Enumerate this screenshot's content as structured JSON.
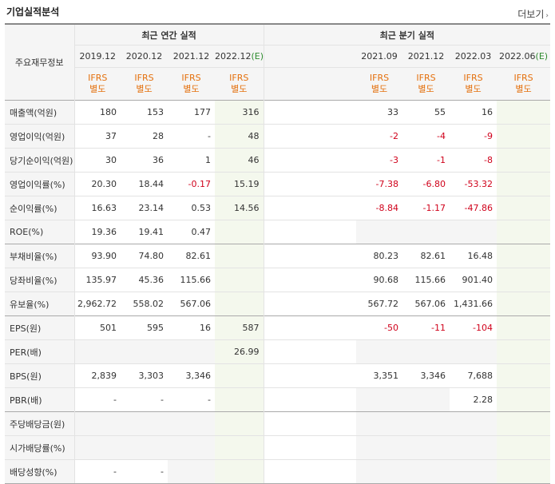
{
  "title": "기업실적분석",
  "more_label": "더보기",
  "header": {
    "row_label": "주요재무정보",
    "annual_group": "최근 연간 실적",
    "quarter_group": "최근 분기 실적",
    "annual_periods": [
      "2019.12",
      "2020.12",
      "2021.12",
      "2022.12"
    ],
    "annual_est_mark": "(E)",
    "quarter_periods": [
      "2021.09",
      "2021.12",
      "2022.03",
      "2022.06"
    ],
    "quarter_est_mark": "(E)",
    "ifrs_line1": "IFRS",
    "ifrs_line2": "별도"
  },
  "rows": [
    {
      "label": "매출액(억원)",
      "annual": [
        "180",
        "153",
        "177",
        "316"
      ],
      "quarter": [
        "33",
        "55",
        "16",
        ""
      ]
    },
    {
      "label": "영업이익(억원)",
      "annual": [
        "37",
        "28",
        "-",
        "48"
      ],
      "quarter": [
        "-2",
        "-4",
        "-9",
        ""
      ]
    },
    {
      "label": "당기순이익(억원)",
      "annual": [
        "30",
        "36",
        "1",
        "46"
      ],
      "quarter": [
        "-3",
        "-1",
        "-8",
        ""
      ]
    },
    {
      "label": "영업이익률(%)",
      "annual": [
        "20.30",
        "18.44",
        "-0.17",
        "15.19"
      ],
      "quarter": [
        "-7.38",
        "-6.80",
        "-53.32",
        ""
      ]
    },
    {
      "label": "순이익률(%)",
      "annual": [
        "16.63",
        "23.14",
        "0.53",
        "14.56"
      ],
      "quarter": [
        "-8.84",
        "-1.17",
        "-47.86",
        ""
      ]
    },
    {
      "label": "ROE(%)",
      "annual": [
        "19.36",
        "19.41",
        "0.47",
        ""
      ],
      "quarter": [
        "",
        "",
        "",
        ""
      ]
    },
    {
      "label": "부채비율(%)",
      "annual": [
        "93.90",
        "74.80",
        "82.61",
        ""
      ],
      "quarter": [
        "80.23",
        "82.61",
        "16.48",
        ""
      ]
    },
    {
      "label": "당좌비율(%)",
      "annual": [
        "135.97",
        "45.36",
        "115.66",
        ""
      ],
      "quarter": [
        "90.68",
        "115.66",
        "901.40",
        ""
      ]
    },
    {
      "label": "유보율(%)",
      "annual": [
        "2,962.72",
        "558.02",
        "567.06",
        ""
      ],
      "quarter": [
        "567.72",
        "567.06",
        "1,431.66",
        ""
      ]
    },
    {
      "label": "EPS(원)",
      "annual": [
        "501",
        "595",
        "16",
        "587"
      ],
      "quarter": [
        "-50",
        "-11",
        "-104",
        ""
      ]
    },
    {
      "label": "PER(배)",
      "annual": [
        "",
        "",
        "",
        "26.99"
      ],
      "quarter": [
        "",
        "",
        "",
        ""
      ]
    },
    {
      "label": "BPS(원)",
      "annual": [
        "2,839",
        "3,303",
        "3,346",
        ""
      ],
      "quarter": [
        "3,351",
        "3,346",
        "7,688",
        ""
      ]
    },
    {
      "label": "PBR(배)",
      "annual": [
        "-",
        "-",
        "-",
        ""
      ],
      "quarter": [
        "",
        "",
        "2.28",
        ""
      ]
    },
    {
      "label": "주당배당금(원)",
      "annual": [
        "",
        "",
        "",
        ""
      ],
      "quarter": [
        "",
        "",
        "",
        ""
      ]
    },
    {
      "label": "시가배당률(%)",
      "annual": [
        "",
        "",
        "",
        ""
      ],
      "quarter": [
        "",
        "",
        "",
        ""
      ]
    },
    {
      "label": "배당성향(%)",
      "annual": [
        "-",
        "-",
        "",
        ""
      ],
      "quarter": [
        "",
        "",
        "",
        ""
      ]
    }
  ],
  "colors": {
    "negative": "#d0021b",
    "ifrs": "#e4700d",
    "estimate_text": "#2e8b2e",
    "estimate_bg": "#f4f8ed",
    "label_bg": "#f5f5f5"
  }
}
